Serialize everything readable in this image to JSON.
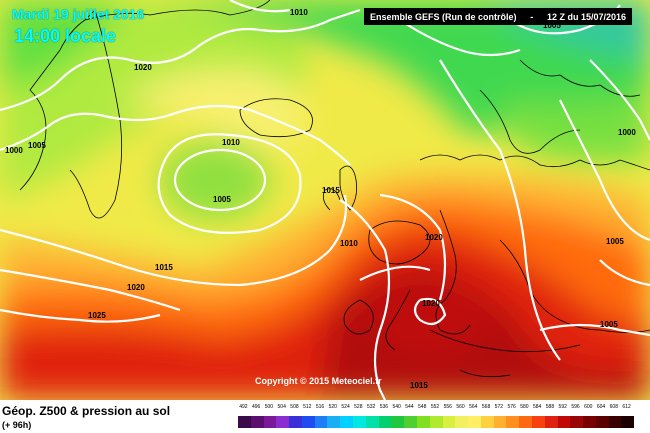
{
  "header": {
    "date": "Mardi 19 juillet 2016",
    "time": "14:00 locale"
  },
  "run_info": {
    "left": "Ensemble GEFS  (Run de contrôle)",
    "right": "12 Z du 15/07/2016"
  },
  "copyright": "Copyright © 2015 Meteociel.fr",
  "footer": {
    "title": "Géop. Z500 & pression au sol",
    "subtitle": "(+ 96h)"
  },
  "pressure_labels": [
    "1010",
    "1020",
    "1010",
    "1005",
    "1000",
    "1005",
    "1015",
    "1015",
    "1020",
    "1025",
    "1010",
    "1020",
    "1020",
    "1000",
    "1015",
    "1005",
    "1005",
    "1005"
  ],
  "scale": {
    "values": [
      "492",
      "496",
      "500",
      "504",
      "508",
      "512",
      "516",
      "520",
      "524",
      "528",
      "532",
      "536",
      "540",
      "544",
      "548",
      "552",
      "556",
      "560",
      "564",
      "568",
      "572",
      "576",
      "580",
      "584",
      "588",
      "592",
      "596",
      "600",
      "604",
      "608",
      "612"
    ],
    "colors": [
      "#3a0a4a",
      "#5a0f6e",
      "#7a1a99",
      "#8a2ecf",
      "#3b2fd9",
      "#1f4cf0",
      "#1e7ef5",
      "#1aaef5",
      "#00d0ff",
      "#00e8e0",
      "#00e0a8",
      "#00d070",
      "#20c840",
      "#50d030",
      "#80e020",
      "#b0ea30",
      "#d8f040",
      "#f0f060",
      "#ffee66",
      "#ffd040",
      "#ffb030",
      "#ff9020",
      "#ff6a10",
      "#f84010",
      "#e02010",
      "#c00808",
      "#9a0505",
      "#780000",
      "#5a0000",
      "#3a0000",
      "#1a0000"
    ]
  },
  "icons": {
    "map": "weather-map-icon"
  }
}
